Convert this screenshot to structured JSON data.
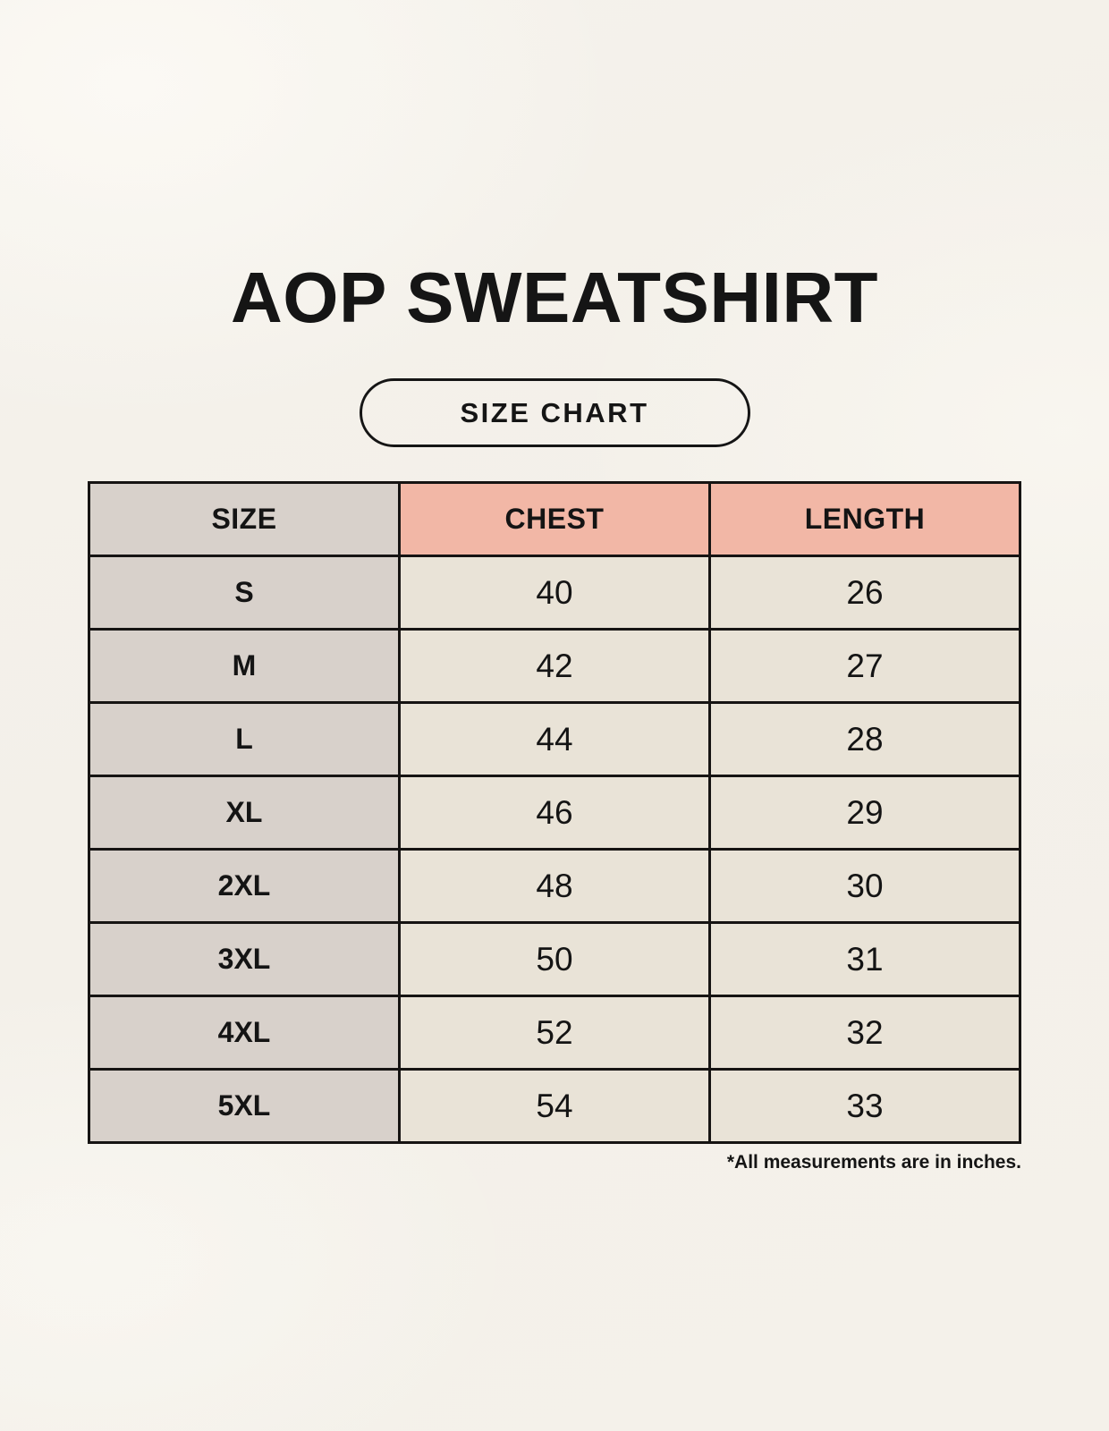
{
  "header": {
    "title": "AOP SWEATSHIRT",
    "badge_label": "SIZE CHART"
  },
  "chart_data": {
    "type": "table",
    "title": "AOP SWEATSHIRT",
    "subtitle": "SIZE CHART",
    "columns": [
      "SIZE",
      "CHEST",
      "LENGTH"
    ],
    "rows": [
      [
        "S",
        "40",
        "26"
      ],
      [
        "M",
        "42",
        "27"
      ],
      [
        "L",
        "44",
        "28"
      ],
      [
        "XL",
        "46",
        "29"
      ],
      [
        "2XL",
        "48",
        "30"
      ],
      [
        "3XL",
        "50",
        "31"
      ],
      [
        "4XL",
        "52",
        "32"
      ],
      [
        "5XL",
        "54",
        "33"
      ]
    ],
    "units": "inches"
  },
  "footnote": "*All measurements are in inches.",
  "colors": {
    "text": "#141414",
    "border": "#161413",
    "size_col_bg": "#d8d1cb",
    "header_accent_bg": "#f2b7a6",
    "value_cell_bg": "#e9e3d7",
    "page_bg": "#f4f1ea"
  }
}
